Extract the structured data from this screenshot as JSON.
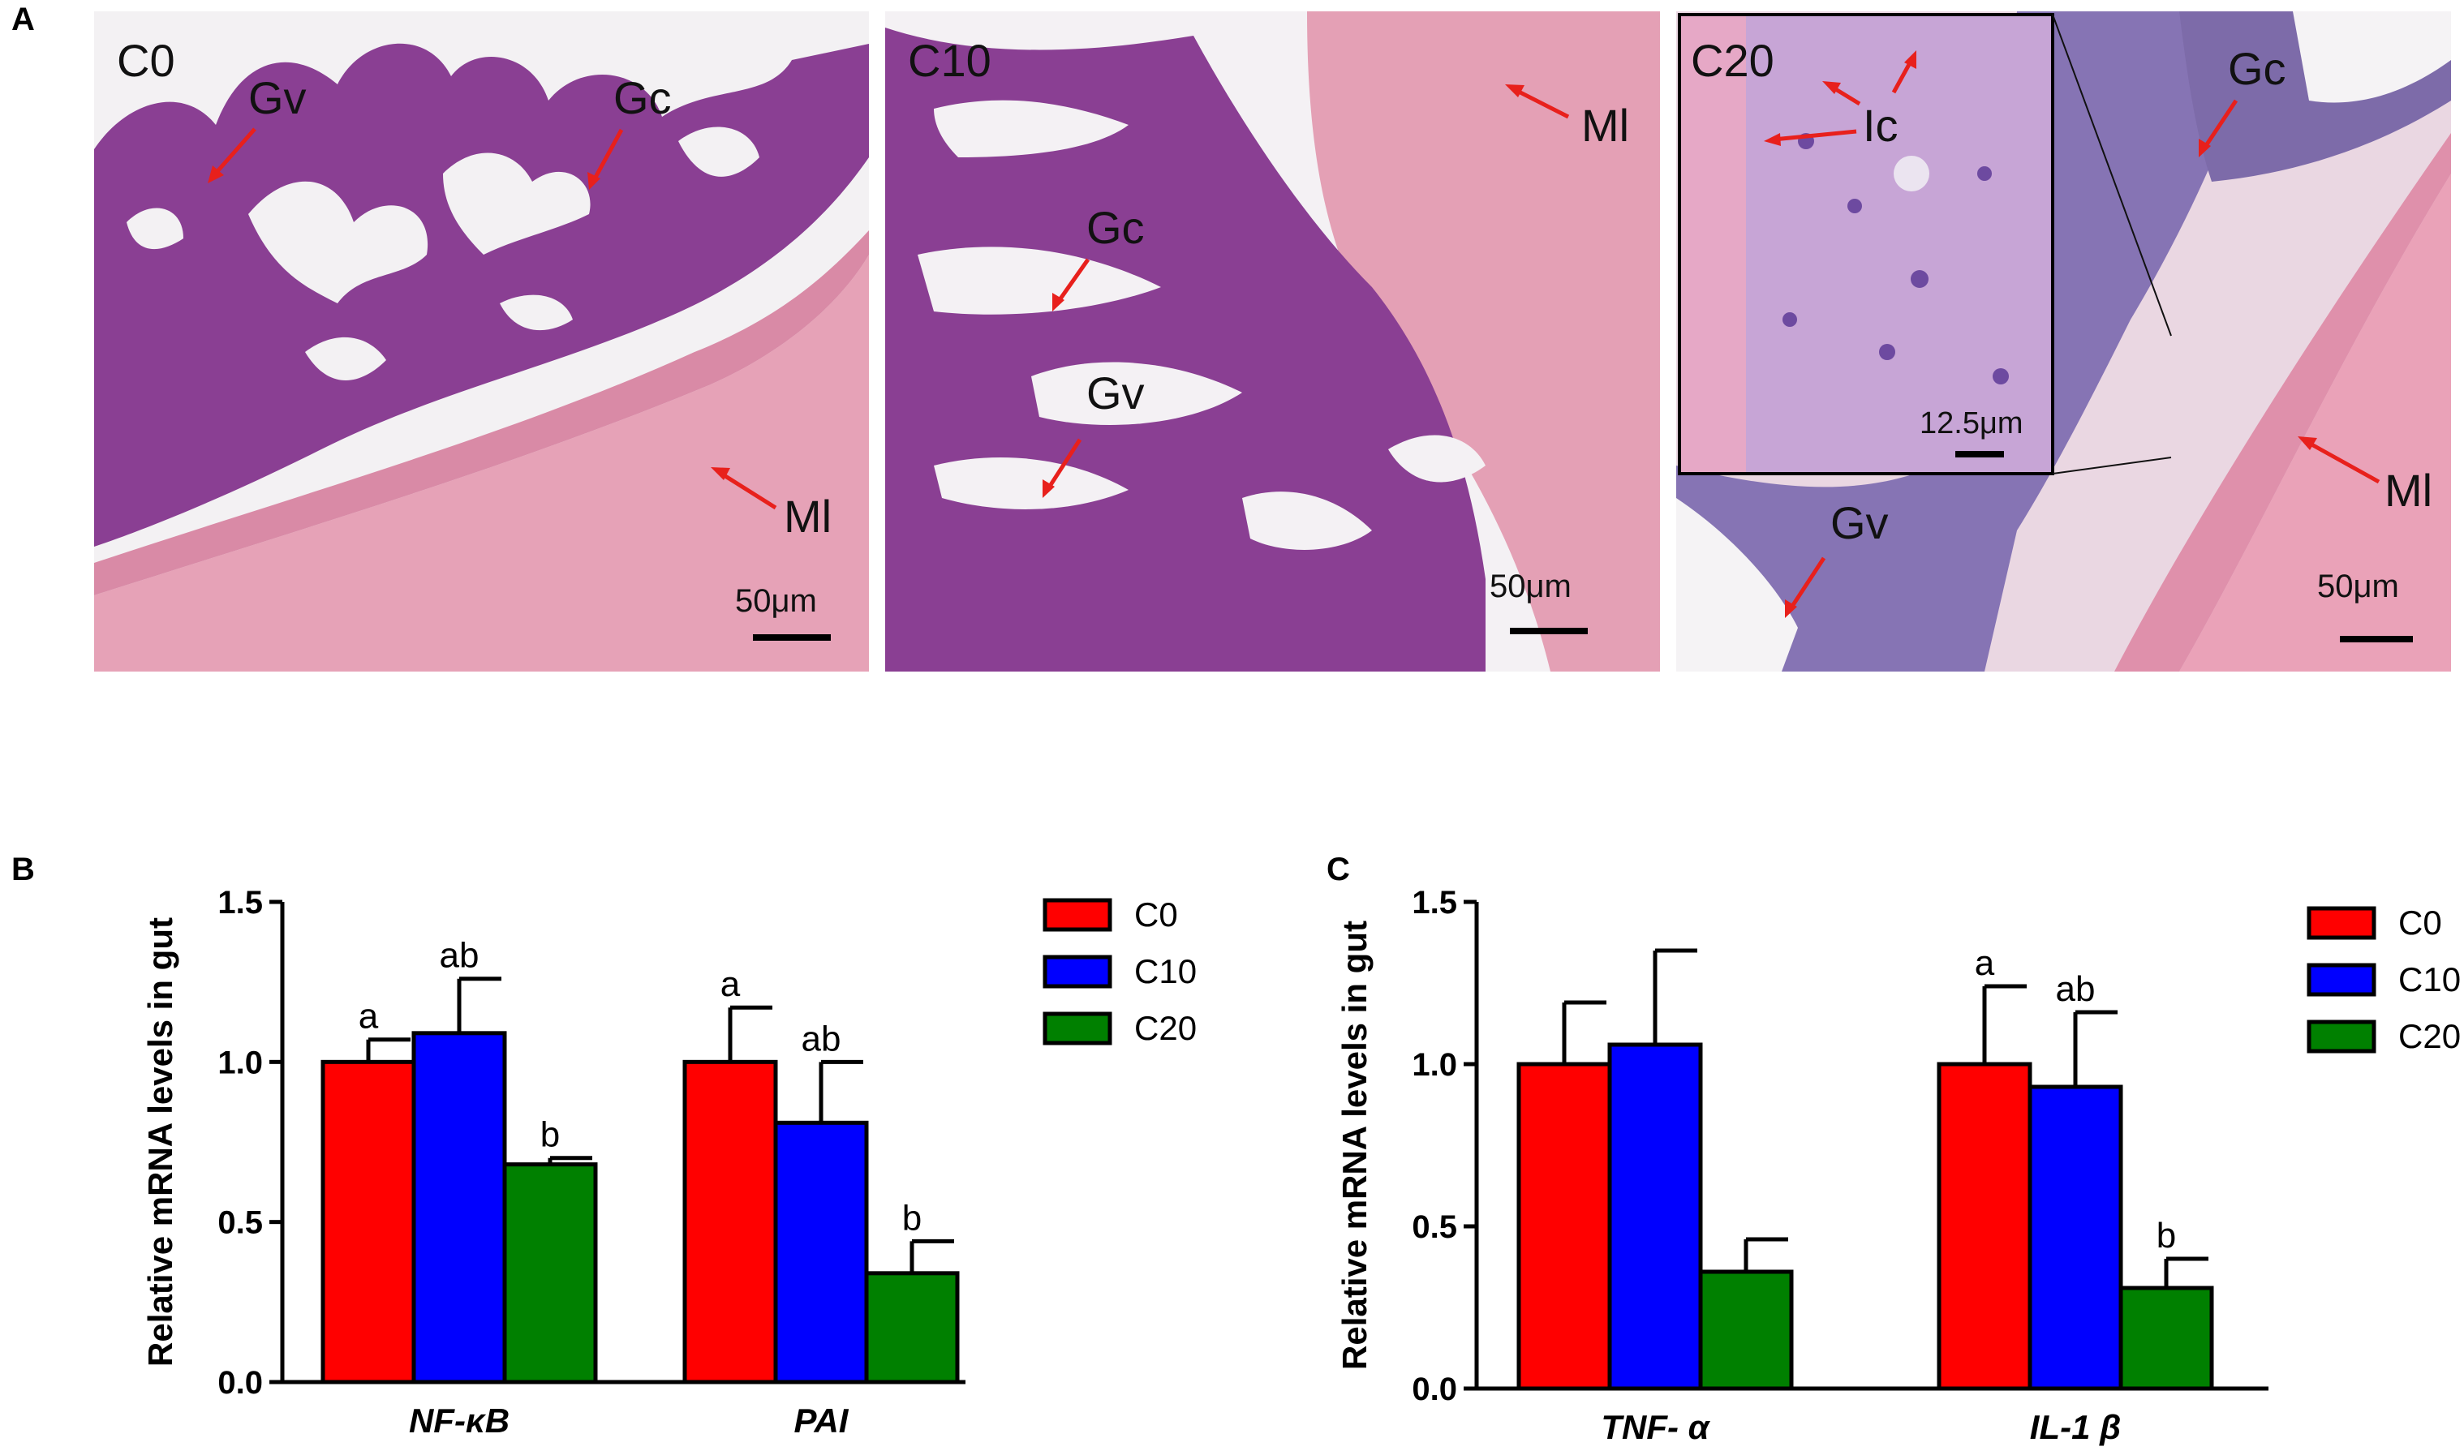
{
  "panels": {
    "A": "A",
    "B": "B",
    "C": "C"
  },
  "micrographs": [
    {
      "label": "C0",
      "annotations": [
        "Gv",
        "Gc",
        "Ml"
      ],
      "scale_bar": "50μm"
    },
    {
      "label": "C10",
      "annotations": [
        "Ml",
        "Gc",
        "Gv"
      ],
      "scale_bar": "50μm"
    },
    {
      "label": "C20",
      "annotations": [
        "Gc",
        "Ml",
        "Gv"
      ],
      "scale_bar": "50μm",
      "inset": {
        "annotation": "Ic",
        "scale_bar": "12.5μm"
      }
    }
  ],
  "colors": {
    "C0": "#ff0000",
    "C10": "#0000ff",
    "C20": "#008000",
    "arrow": "#e8201c",
    "tissue_purple": "#8a3f93",
    "tissue_pink": "#e8a3b8",
    "lumen": "#f4f2f4",
    "inset_bg": "#c9a9d8"
  },
  "chart_data": [
    {
      "type": "bar",
      "ylabel": "Relative mRNA levels in gut",
      "categories": [
        "NF-κB",
        "PAI"
      ],
      "ylim": [
        0,
        1.5
      ],
      "yticks": [
        "0.0",
        "0.5",
        "1.0",
        "1.5"
      ],
      "series": [
        {
          "name": "C0",
          "values": [
            1.0,
            1.0
          ],
          "errors": [
            0.07,
            0.17
          ],
          "letters": [
            "a",
            "a"
          ]
        },
        {
          "name": "C10",
          "values": [
            1.09,
            0.81
          ],
          "errors": [
            0.17,
            0.19
          ],
          "letters": [
            "ab",
            "ab"
          ]
        },
        {
          "name": "C20",
          "values": [
            0.68,
            0.34
          ],
          "errors": [
            0.02,
            0.1
          ],
          "letters": [
            "b",
            "b"
          ]
        }
      ],
      "legend": "right"
    },
    {
      "type": "bar",
      "ylabel": "Relative mRNA levels in gut",
      "categories": [
        "TNF- α",
        "IL-1 β"
      ],
      "ylim": [
        0,
        1.5
      ],
      "yticks": [
        "0.0",
        "0.5",
        "1.0",
        "1.5"
      ],
      "series": [
        {
          "name": "C0",
          "values": [
            1.0,
            1.0
          ],
          "errors": [
            0.19,
            0.24
          ],
          "letters": [
            "",
            "a"
          ]
        },
        {
          "name": "C10",
          "values": [
            1.06,
            0.93
          ],
          "errors": [
            0.29,
            0.23
          ],
          "letters": [
            "",
            "ab"
          ]
        },
        {
          "name": "C20",
          "values": [
            0.36,
            0.31
          ],
          "errors": [
            0.1,
            0.09
          ],
          "letters": [
            "",
            "b"
          ]
        }
      ],
      "legend": "right"
    }
  ]
}
